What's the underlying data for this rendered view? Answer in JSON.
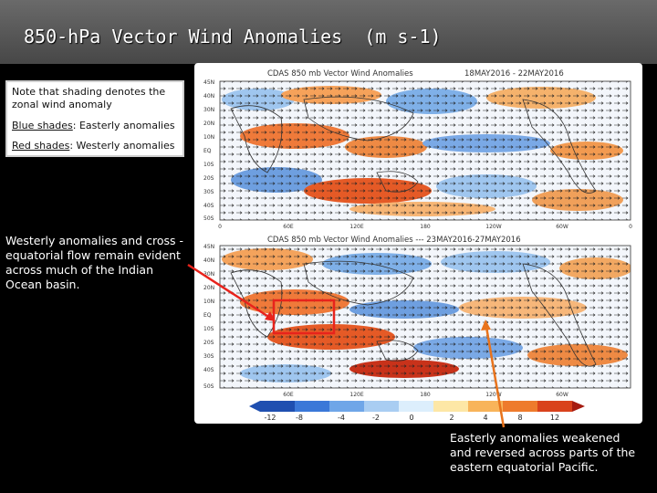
{
  "slide": {
    "title": "850-hPa Vector Wind Anomalies  (m s-1)"
  },
  "note": {
    "line1": "Note that shading denotes the zonal wind anomaly",
    "blue_label": "Blue shades",
    "blue_text": ": Easterly anomalies",
    "red_label": "Red shades",
    "red_text": ": Westerly anomalies"
  },
  "callouts": {
    "left": "Westerly anomalies and cross -equatorial flow remain evident across much of the Indian Ocean basin.",
    "right": "Easterly anomalies weakened and reversed across parts of the eastern equatorial Pacific."
  },
  "maps": {
    "top": {
      "title_left": "CDAS 850 mb Vector Wind Anomalies",
      "title_right": "18MAY2016 - 22MAY2016"
    },
    "bottom": {
      "title_left": "CDAS 850 mb Vector Wind Anomalies --- 23MAY2016-27MAY2016"
    },
    "lat_labels": [
      "45N",
      "40N",
      "30N",
      "20N",
      "10N",
      "EQ",
      "10S",
      "20S",
      "30S",
      "40S",
      "50S"
    ],
    "lon_labels": [
      "0",
      "60E",
      "120E",
      "180",
      "120W",
      "60W",
      "0"
    ],
    "colorbar": {
      "ticks": [
        "-12",
        "-8",
        "-4",
        "-2",
        "0",
        "2",
        "4",
        "8",
        "12"
      ],
      "colors": [
        "#1f4fb0",
        "#3b78d8",
        "#6fa6e8",
        "#a9cdf2",
        "#dceefc",
        "#ffffff",
        "#fde7a6",
        "#f8b45a",
        "#ee7b2c",
        "#d9421c",
        "#a51b10"
      ]
    }
  }
}
